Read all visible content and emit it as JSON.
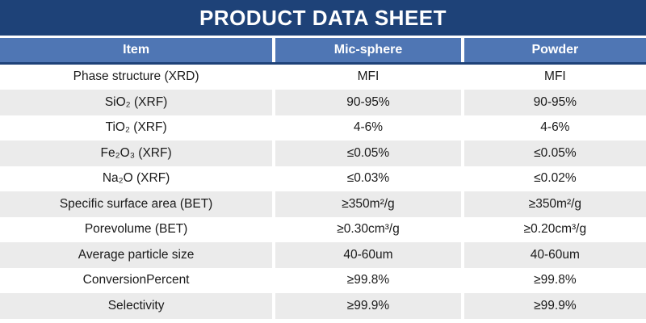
{
  "title": "PRODUCT DATA SHEET",
  "colors": {
    "title_bg": "#1e4278",
    "header_bg": "#4f76b4",
    "header_text": "#ffffff",
    "row_alt_bg": "#ebebeb",
    "body_text": "#1a1a1a"
  },
  "table": {
    "columns": [
      "Item",
      "Mic-sphere",
      "Powder"
    ],
    "rows": [
      {
        "item": "Phase structure (XRD)",
        "mic_sphere": "MFI",
        "powder": "MFI"
      },
      {
        "item": "SiO₂ (XRF)",
        "mic_sphere": "90-95%",
        "powder": "90-95%"
      },
      {
        "item": "TiO₂ (XRF)",
        "mic_sphere": "4-6%",
        "powder": "4-6%"
      },
      {
        "item": "Fe₂O₃ (XRF)",
        "mic_sphere": "≤0.05%",
        "powder": "≤0.05%"
      },
      {
        "item": "Na₂O (XRF)",
        "mic_sphere": "≤0.03%",
        "powder": "≤0.02%"
      },
      {
        "item": "Specific surface area (BET)",
        "mic_sphere": "≥350m²/g",
        "powder": "≥350m²/g"
      },
      {
        "item": "Porevolume (BET)",
        "mic_sphere": "≥0.30cm³/g",
        "powder": "≥0.20cm³/g"
      },
      {
        "item": "Average particle size",
        "mic_sphere": "40-60um",
        "powder": "40-60um"
      },
      {
        "item": "ConversionPercent",
        "mic_sphere": "≥99.8%",
        "powder": "≥99.8%"
      },
      {
        "item": "Selectivity",
        "mic_sphere": "≥99.9%",
        "powder": "≥99.9%"
      }
    ]
  }
}
